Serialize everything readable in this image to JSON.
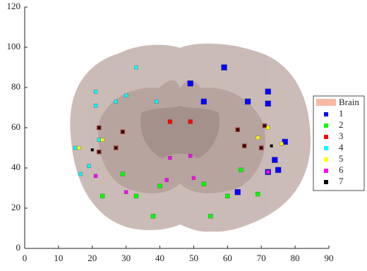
{
  "chart_data": {
    "type": "scatter",
    "background_label": "Brain",
    "background_color": "#f7b9a3",
    "xlim": [
      0,
      90
    ],
    "xticks": [
      0,
      10,
      20,
      30,
      40,
      50,
      60,
      70,
      80,
      90
    ],
    "ylim": [
      0,
      120
    ],
    "yticks": [
      0,
      20,
      40,
      60,
      80,
      100,
      120
    ],
    "legend": "right",
    "series": [
      {
        "name": "1",
        "color": "#0000ff",
        "marker_size": 8,
        "x": [
          59,
          49,
          53,
          72,
          66,
          72,
          77,
          74,
          75,
          72,
          63
        ],
        "y": [
          90,
          82,
          73,
          78,
          73,
          72,
          53,
          44,
          39,
          38,
          28
        ]
      },
      {
        "name": "2",
        "color": "#00ff00",
        "marker_size": 6,
        "x": [
          23,
          33,
          38,
          40,
          29,
          53,
          55,
          60,
          64,
          69
        ],
        "y": [
          26,
          26,
          16,
          31,
          37,
          32,
          16,
          26,
          39,
          27
        ]
      },
      {
        "name": "3",
        "color": "#ff0000",
        "marker_size": 6,
        "x": [
          43,
          49,
          22,
          29,
          27,
          22,
          63,
          65,
          70,
          71
        ],
        "y": [
          63,
          63,
          60,
          58,
          50,
          48,
          59,
          51,
          50,
          61
        ]
      },
      {
        "name": "4",
        "color": "#00ffff",
        "marker_size": 5,
        "x": [
          33,
          21,
          30,
          27,
          39,
          21,
          15,
          19,
          16.5,
          22
        ],
        "y": [
          90,
          78,
          76,
          73,
          73,
          71,
          50,
          41,
          37,
          54
        ]
      },
      {
        "name": "5",
        "color": "#ffff00",
        "marker_size": 5,
        "x": [
          16,
          23,
          69,
          76,
          72
        ],
        "y": [
          50,
          54,
          55,
          52,
          60
        ]
      },
      {
        "name": "6",
        "color": "#ff00ff",
        "marker_size": 5,
        "x": [
          43,
          49,
          21,
          42,
          50,
          30,
          72
        ],
        "y": [
          45,
          46,
          36,
          34,
          35,
          28,
          38
        ]
      },
      {
        "name": "7",
        "color": "#000000",
        "marker_size": 4,
        "x": [
          22,
          20,
          22,
          29,
          27,
          63,
          65,
          71,
          73,
          70
        ],
        "y": [
          60,
          49,
          48,
          58,
          50,
          59,
          51,
          61,
          51,
          50
        ]
      }
    ]
  }
}
